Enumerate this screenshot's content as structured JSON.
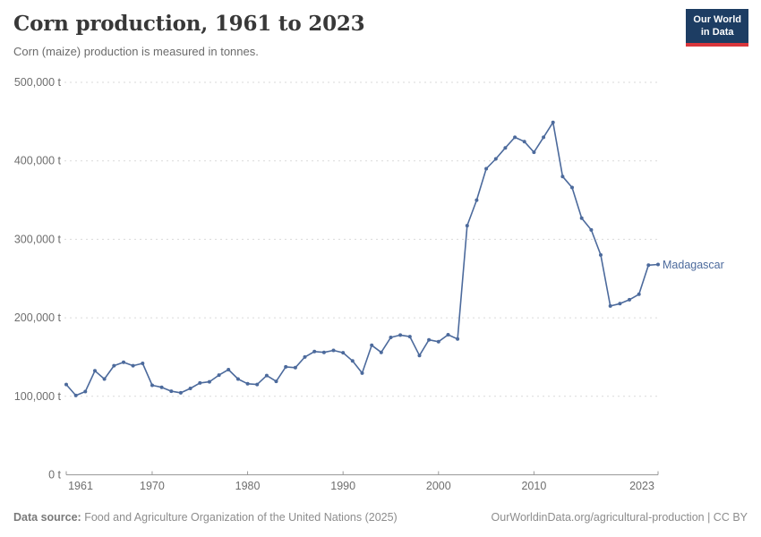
{
  "header": {
    "title": "Corn production, 1961 to 2023",
    "subtitle": "Corn (maize) production is measured in tonnes."
  },
  "logo": {
    "line1": "Our World",
    "line2": "in Data"
  },
  "footer": {
    "source_label": "Data source:",
    "source_text": " Food and Agriculture Organization of the United Nations (2025)",
    "right_text": "OurWorldinData.org/agricultural-production | CC BY"
  },
  "chart_data": {
    "type": "line",
    "title": "Corn production, 1961 to 2023",
    "subtitle": "Corn (maize) production is measured in tonnes.",
    "xlabel": "",
    "ylabel": "",
    "unit": "t",
    "grid": "horizontal-dashed",
    "legend_position": "end-of-line-label",
    "xlim": [
      1961,
      2023
    ],
    "ylim": [
      0,
      500000
    ],
    "x_ticks": [
      1961,
      1970,
      1980,
      1990,
      2000,
      2010,
      2023
    ],
    "y_ticks": [
      {
        "value": 0,
        "label": "0 t"
      },
      {
        "value": 100000,
        "label": "100,000 t"
      },
      {
        "value": 200000,
        "label": "200,000 t"
      },
      {
        "value": 300000,
        "label": "300,000 t"
      },
      {
        "value": 400000,
        "label": "400,000 t"
      },
      {
        "value": 500000,
        "label": "500,000 t"
      }
    ],
    "series": [
      {
        "name": "Madagascar",
        "color": "#4C6A9C",
        "x": [
          1961,
          1962,
          1963,
          1964,
          1965,
          1966,
          1967,
          1968,
          1969,
          1970,
          1971,
          1972,
          1973,
          1974,
          1975,
          1976,
          1977,
          1978,
          1979,
          1980,
          1981,
          1982,
          1983,
          1984,
          1985,
          1986,
          1987,
          1988,
          1989,
          1990,
          1991,
          1992,
          1993,
          1994,
          1995,
          1996,
          1997,
          1998,
          1999,
          2000,
          2001,
          2002,
          2003,
          2004,
          2005,
          2006,
          2007,
          2008,
          2009,
          2010,
          2011,
          2012,
          2013,
          2014,
          2015,
          2016,
          2017,
          2018,
          2019,
          2020,
          2021,
          2022,
          2023
        ],
        "values": [
          115000,
          101000,
          106000,
          132500,
          122000,
          139000,
          143500,
          139000,
          142000,
          114000,
          111500,
          106500,
          104500,
          110000,
          117000,
          118500,
          127000,
          134000,
          122000,
          116000,
          115000,
          126500,
          119000,
          137500,
          136500,
          150000,
          157000,
          156000,
          158500,
          155500,
          145000,
          129500,
          165000,
          156000,
          175000,
          178000,
          176000,
          152000,
          172000,
          169500,
          178500,
          173000,
          317500,
          350000,
          390000,
          402500,
          416500,
          430000,
          424500,
          411000,
          430000,
          449000,
          380000,
          366000,
          327000,
          312000,
          280000,
          215000,
          218000,
          223000,
          230000,
          267000,
          268000
        ]
      }
    ]
  }
}
